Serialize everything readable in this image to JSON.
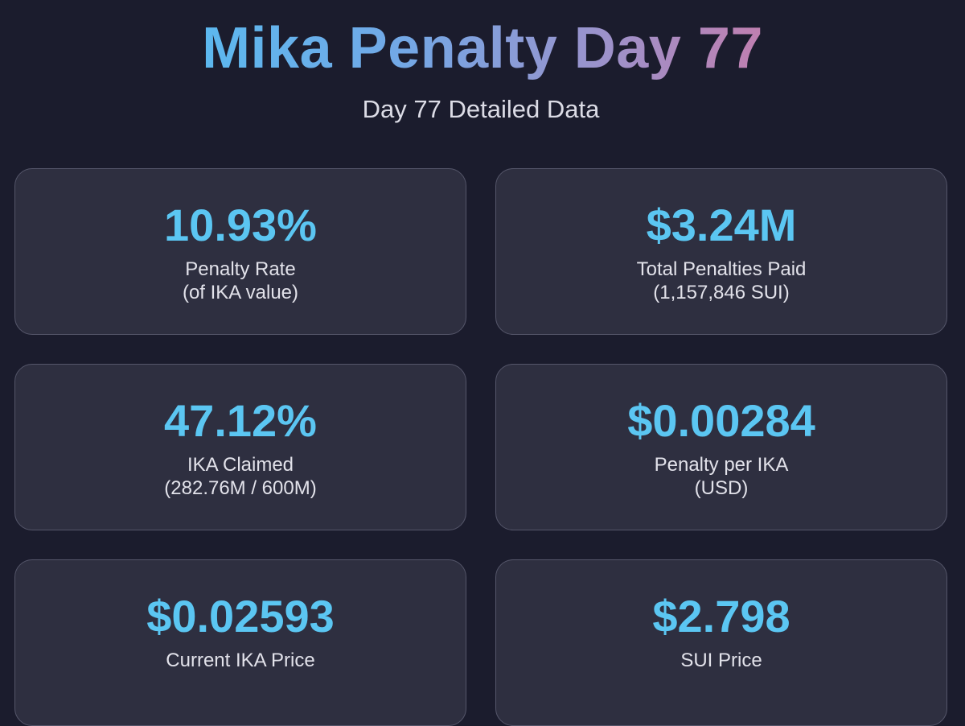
{
  "header": {
    "title": "Mika Penalty Day 77",
    "subtitle": "Day 77 Detailed Data"
  },
  "cards": [
    {
      "value": "10.93%",
      "label": "Penalty Rate",
      "sub": "(of IKA value)"
    },
    {
      "value": "$3.24M",
      "label": "Total Penalties Paid",
      "sub": "(1,157,846 SUI)"
    },
    {
      "value": "47.12%",
      "label": "IKA Claimed",
      "sub": "(282.76M / 600M)"
    },
    {
      "value": "$0.00284",
      "label": "Penalty per IKA",
      "sub": "(USD)"
    },
    {
      "value": "$0.02593",
      "label": "Current IKA Price",
      "sub": ""
    },
    {
      "value": "$2.798",
      "label": "SUI Price",
      "sub": ""
    }
  ],
  "colors": {
    "background": "#1b1c2d",
    "card_background": "#2e2f40",
    "card_border": "#55566a",
    "accent_value": "#5bc6f2",
    "title_gradient_start": "#5cb8ef",
    "title_gradient_end": "#c07fb0"
  }
}
